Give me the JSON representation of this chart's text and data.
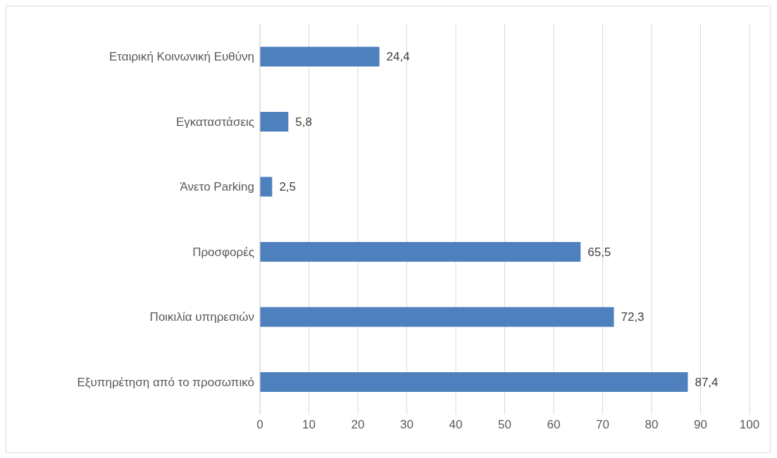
{
  "chart_data": {
    "type": "bar",
    "orientation": "horizontal",
    "categories": [
      "Εταιρική Κοινωνική Ευθύνη",
      "Εγκαταστάσεις",
      "Άνετο Parking",
      "Προσφορές",
      "Ποικιλία υπηρεσιών",
      "Εξυπηρέτηση από το προσωπικό"
    ],
    "values": [
      24.4,
      5.8,
      2.5,
      65.5,
      72.3,
      87.4
    ],
    "value_labels": [
      "24,4",
      "5,8",
      "2,5",
      "65,5",
      "72,3",
      "87,4"
    ],
    "color": "#4e80bd",
    "xlim": [
      0,
      100
    ],
    "xticks": [
      0,
      10,
      20,
      30,
      40,
      50,
      60,
      70,
      80,
      90,
      100
    ],
    "grid": "x"
  }
}
